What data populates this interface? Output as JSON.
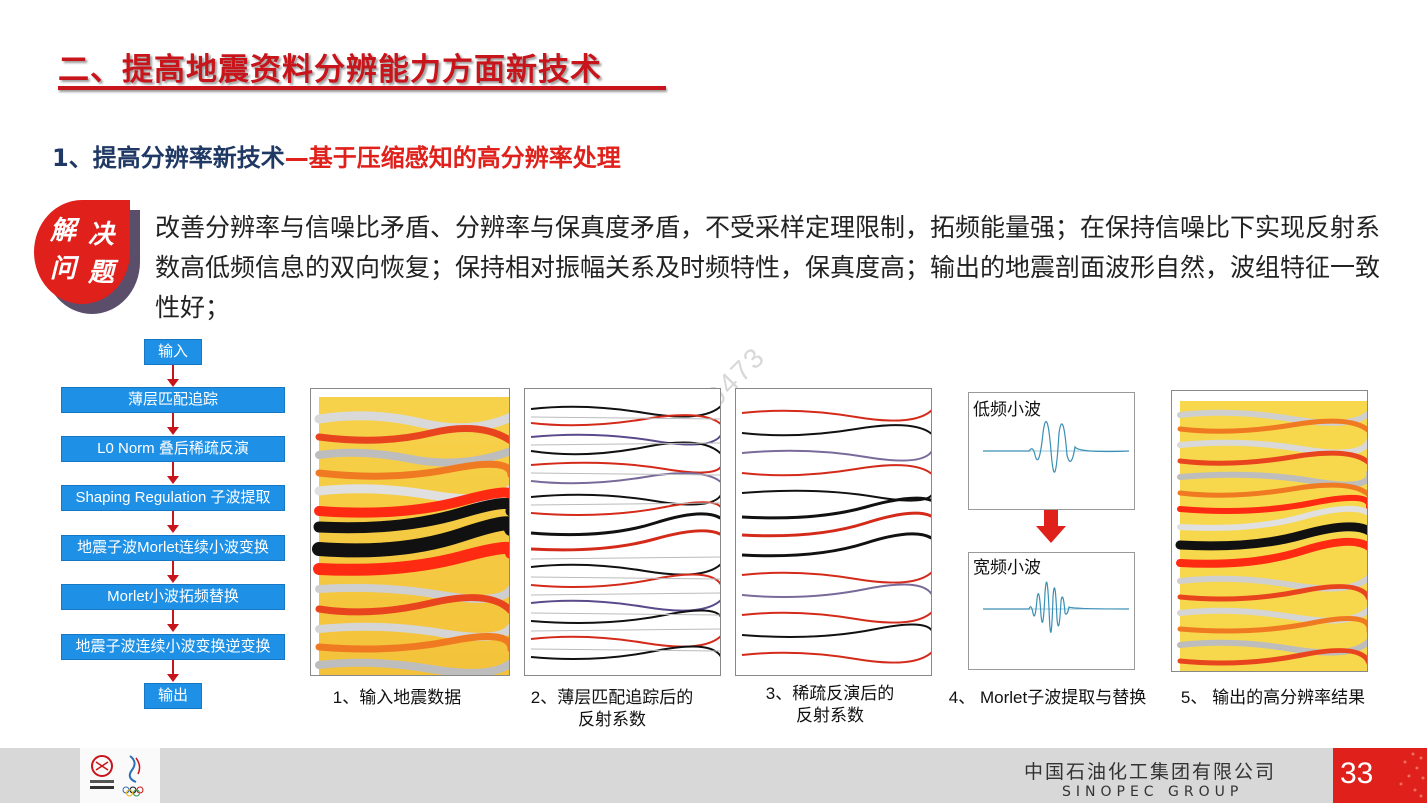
{
  "header": {
    "title": "二、提高地震资料分辨能力方面新技术"
  },
  "subtitle": {
    "dark_part": "1、提高分辨率新技术",
    "red_part": "—基于压缩感知的高分辨率处理"
  },
  "badge": {
    "chars": [
      "解",
      "决",
      "问",
      "题"
    ]
  },
  "description": "改善分辨率与信噪比矛盾、分辨率与保真度矛盾，不受采样定理限制，拓频能量强；在保持信噪比下实现反射系数高低频信息的双向恢复；保持相对振幅关系及时频特性，保真度高；输出的地震剖面波形自然，波组特征一致性好；",
  "flowchart": {
    "input": "输入",
    "steps": [
      "薄层匹配追踪",
      "L0 Norm 叠后稀疏反演",
      "Shaping Regulation 子波提取",
      "地震子波Morlet连续小波变换",
      "Morlet小波拓频替换",
      "地震子波连续小波变换逆变换"
    ],
    "output": "输出"
  },
  "wavelets": {
    "low_label": "低频小波",
    "wide_label": "宽频小波"
  },
  "captions": {
    "c1": "1、输入地震数据",
    "c2_line1": "2、薄层匹配追踪后的",
    "c2_line2": "反射系数",
    "c3_line1": "3、稀疏反演后的",
    "c3_line2": "反射系数",
    "c4": "4、 Morlet子波提取与替换",
    "c5": "5、 输出的高分辨率结果"
  },
  "footer": {
    "company_cn": "中国石油化工集团有限公司",
    "company_en": "SINOPEC GROUP",
    "page_number": "33"
  },
  "watermark": "08549473",
  "colors": {
    "title_red": "#c8141b",
    "accent_red": "#e0201b",
    "subtitle_dark": "#1f3864",
    "flow_blue": "#1e90e6",
    "footer_gray": "#d8d8d8"
  }
}
